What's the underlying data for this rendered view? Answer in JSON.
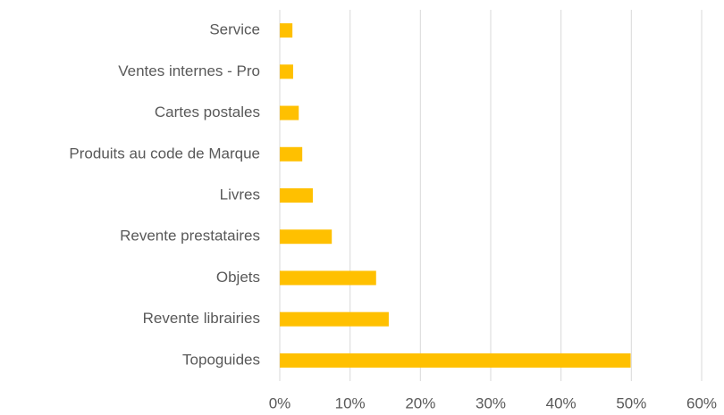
{
  "chart_data": {
    "type": "hbar",
    "categories": [
      "Service",
      "Ventes internes - Pro",
      "Cartes postales",
      "Produits au code de Marque",
      "Livres",
      "Revente prestataires",
      "Objets",
      "Revente librairies",
      "Topoguides"
    ],
    "values": [
      1.8,
      1.9,
      2.7,
      3.2,
      4.7,
      7.4,
      13.7,
      15.5,
      49.9
    ],
    "color": "#ffc000",
    "xlim": [
      0,
      60
    ],
    "xticks": [
      {
        "value": 0,
        "label": "0%"
      },
      {
        "value": 10,
        "label": "10%"
      },
      {
        "value": 20,
        "label": "20%"
      },
      {
        "value": 30,
        "label": "30%"
      },
      {
        "value": 40,
        "label": "40%"
      },
      {
        "value": 50,
        "label": "50%"
      },
      {
        "value": 60,
        "label": "60%"
      }
    ],
    "grid": true
  }
}
